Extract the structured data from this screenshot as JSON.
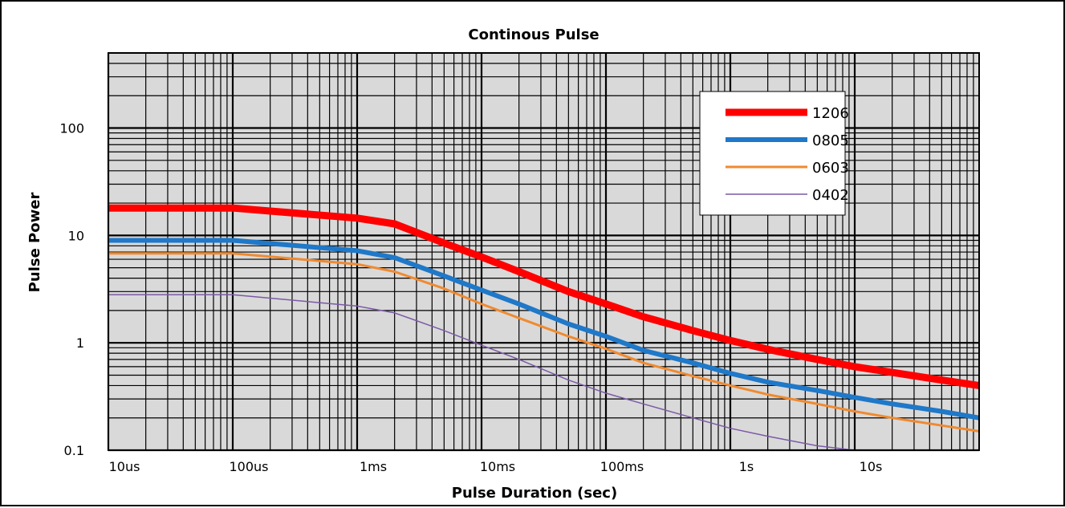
{
  "chart_data": {
    "type": "line",
    "title": "Continous Pulse",
    "xlabel": "Pulse Duration (sec)",
    "ylabel": "Pulse Power",
    "x_scale": "log",
    "y_scale": "log",
    "xlim": [
      1e-05,
      100
    ],
    "ylim": [
      0.1,
      500
    ],
    "grid": true,
    "legend_position": "top-right",
    "x_ticks": [
      {
        "value": 1e-05,
        "label": "10us"
      },
      {
        "value": 0.0001,
        "label": "100us"
      },
      {
        "value": 0.001,
        "label": "1ms"
      },
      {
        "value": 0.01,
        "label": "10ms"
      },
      {
        "value": 0.1,
        "label": "100ms"
      },
      {
        "value": 1,
        "label": "1s"
      },
      {
        "value": 10,
        "label": "10s"
      }
    ],
    "y_ticks": [
      {
        "value": 0.1,
        "label": "0.1"
      },
      {
        "value": 1,
        "label": "1"
      },
      {
        "value": 10,
        "label": "10"
      },
      {
        "value": 100,
        "label": "100"
      }
    ],
    "series": [
      {
        "name": "1206",
        "color": "#ff0000",
        "stroke_weight": "thick",
        "x": [
          1e-05,
          0.0001,
          0.001,
          0.002,
          0.005,
          0.01,
          0.02,
          0.05,
          0.1,
          0.2,
          0.5,
          1,
          2,
          5,
          10,
          20,
          50,
          100
        ],
        "y": [
          18,
          18,
          14.5,
          12.8,
          8.5,
          6.3,
          4.6,
          3.0,
          2.3,
          1.75,
          1.3,
          1.05,
          0.87,
          0.7,
          0.6,
          0.53,
          0.45,
          0.4
        ]
      },
      {
        "name": "0805",
        "color": "#1f78c8",
        "stroke_weight": "medium",
        "x": [
          1e-05,
          0.0001,
          0.001,
          0.002,
          0.005,
          0.01,
          0.02,
          0.05,
          0.1,
          0.2,
          0.5,
          1,
          2,
          5,
          10,
          20,
          50,
          100
        ],
        "y": [
          9,
          9,
          7.2,
          6.2,
          4.2,
          3.1,
          2.3,
          1.5,
          1.15,
          0.85,
          0.65,
          0.52,
          0.43,
          0.36,
          0.31,
          0.27,
          0.23,
          0.2
        ]
      },
      {
        "name": "0603",
        "color": "#f08a30",
        "stroke_weight": "thin",
        "x": [
          1e-05,
          0.0001,
          0.001,
          0.002,
          0.005,
          0.01,
          0.02,
          0.05,
          0.1,
          0.2,
          0.5,
          1,
          2,
          5,
          10,
          20,
          50,
          100
        ],
        "y": [
          6.8,
          6.8,
          5.4,
          4.6,
          3.2,
          2.3,
          1.7,
          1.15,
          0.88,
          0.65,
          0.49,
          0.4,
          0.33,
          0.27,
          0.23,
          0.2,
          0.17,
          0.15
        ]
      },
      {
        "name": "0402",
        "color": "#7b5aa6",
        "stroke_weight": "hairline",
        "x": [
          1e-05,
          0.0001,
          0.001,
          0.002,
          0.005,
          0.01,
          0.02,
          0.05,
          0.1,
          0.2,
          0.5,
          1,
          2,
          5,
          10
        ],
        "y": [
          2.8,
          2.8,
          2.2,
          1.9,
          1.3,
          0.95,
          0.7,
          0.45,
          0.34,
          0.27,
          0.2,
          0.16,
          0.135,
          0.11,
          0.1
        ]
      }
    ]
  }
}
